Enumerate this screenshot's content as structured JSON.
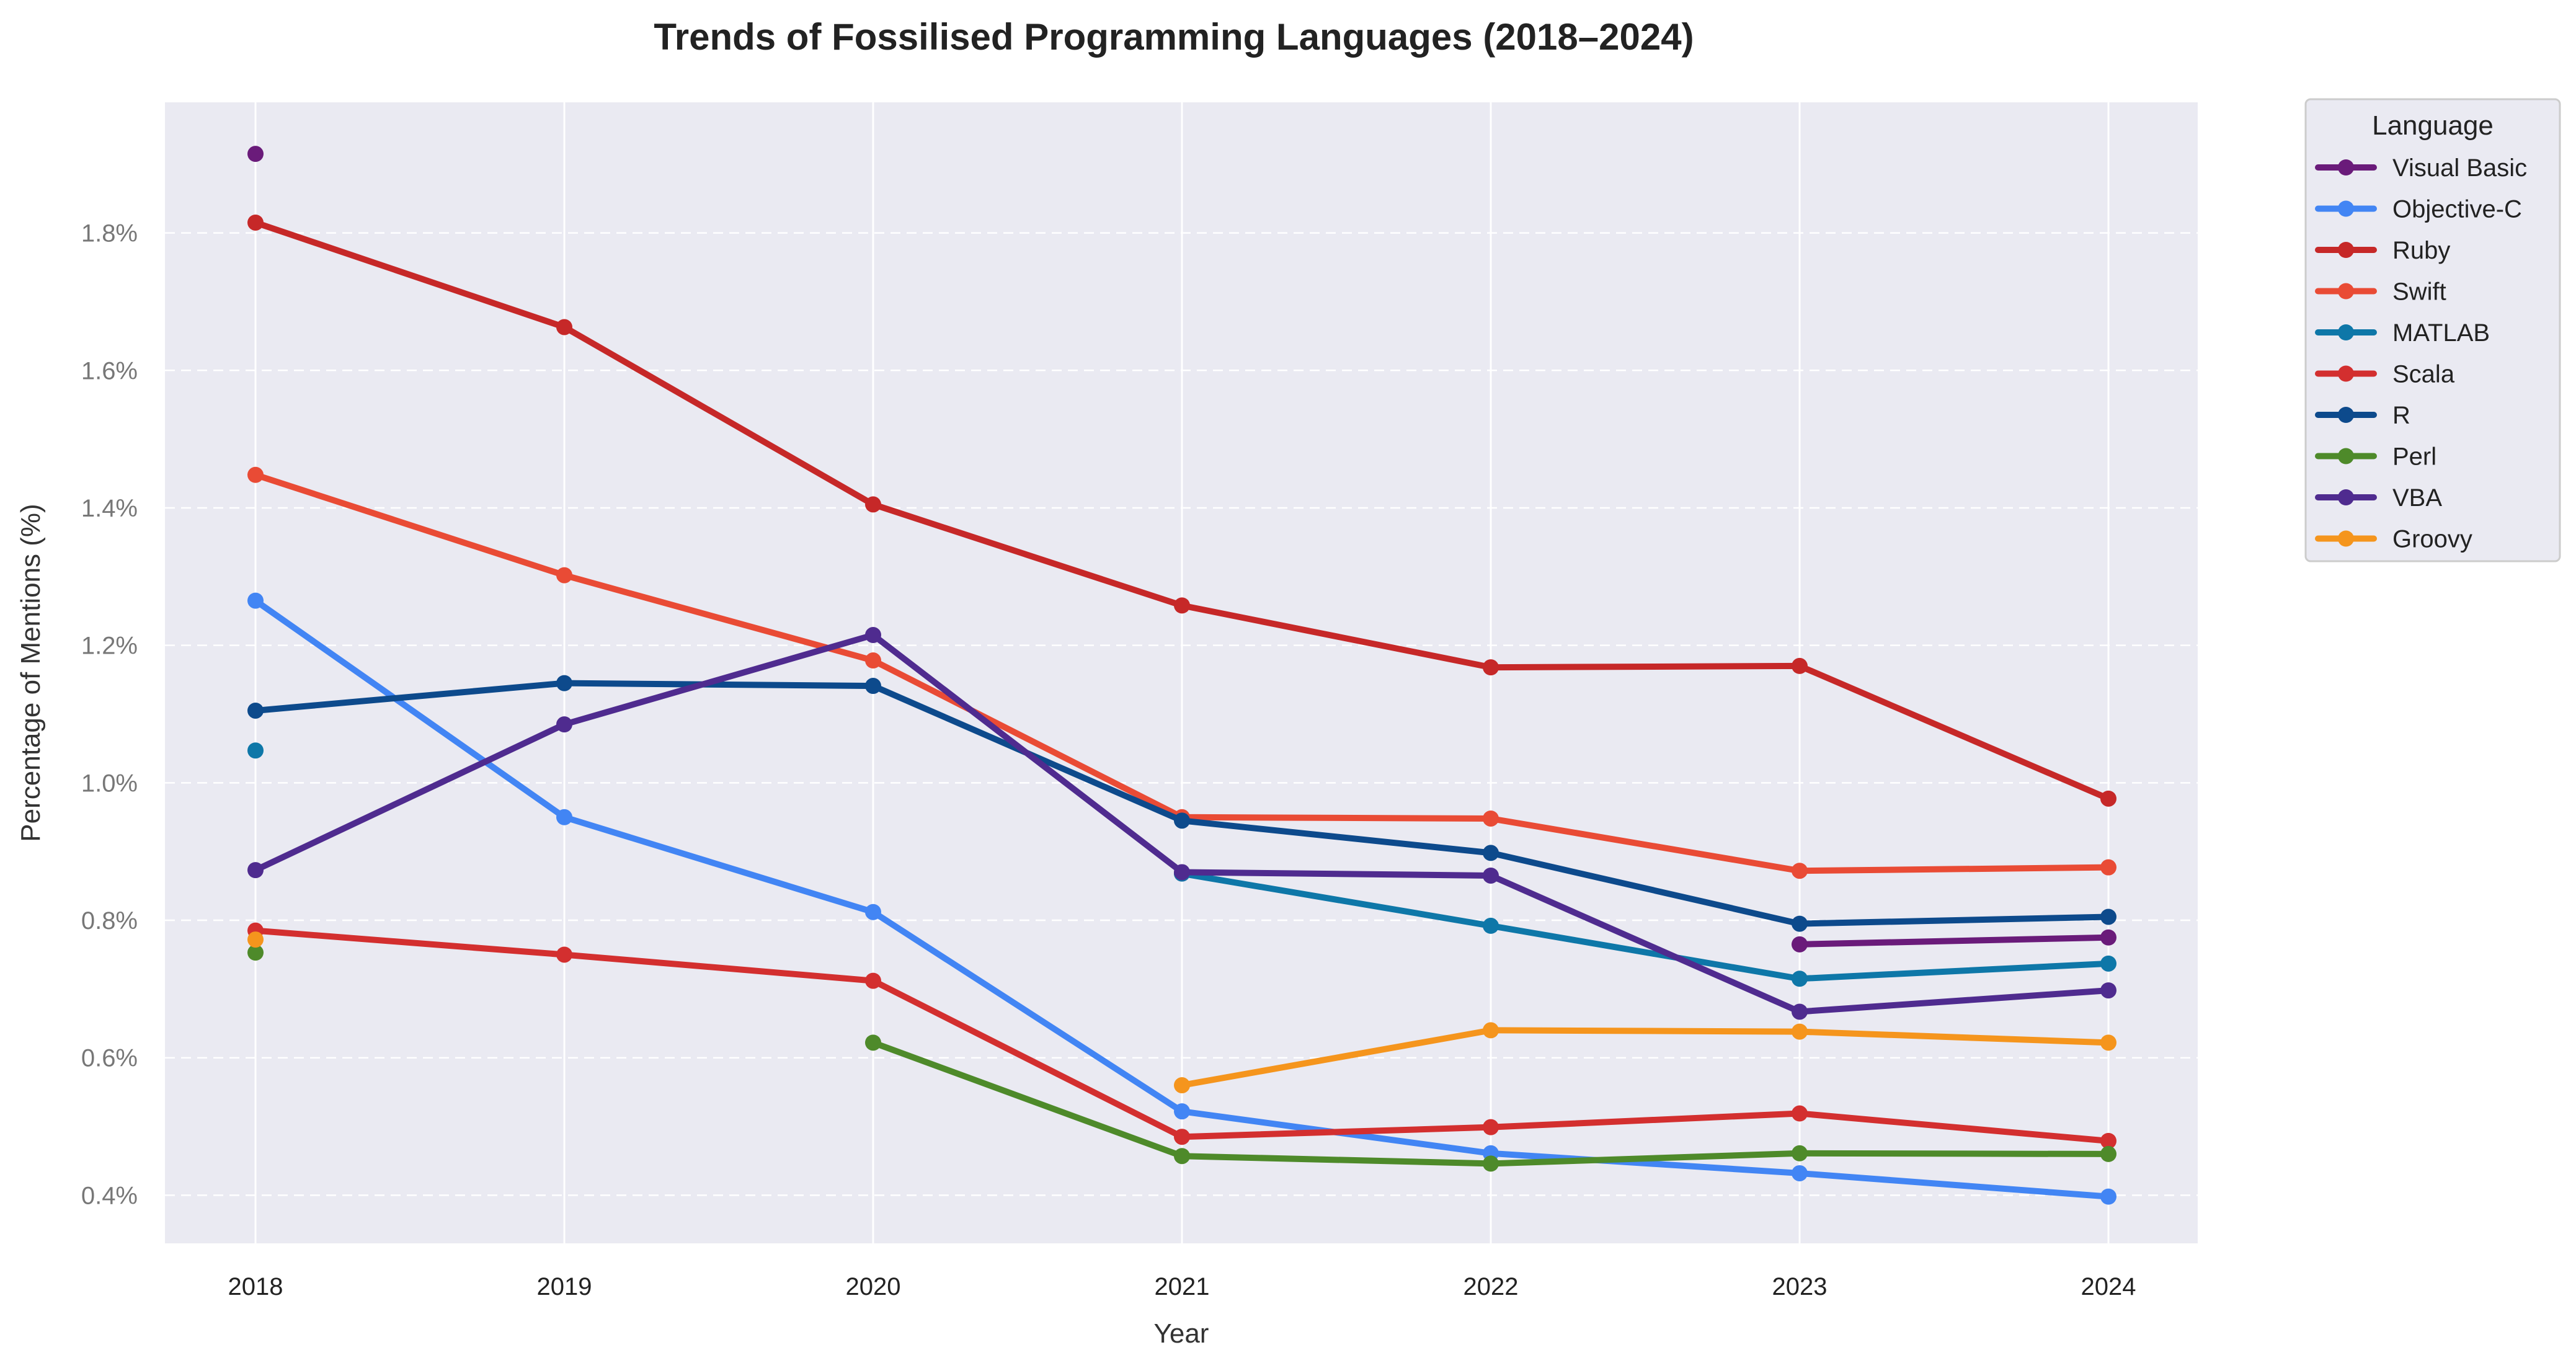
{
  "chart_data": {
    "type": "line",
    "title": "Trends of Fossilised Programming Languages (2018–2024)",
    "xlabel": "Year",
    "ylabel": "Percentage of Mentions (%)",
    "x": [
      2018,
      2019,
      2020,
      2021,
      2022,
      2023,
      2024
    ],
    "x_tick_labels": [
      "2018",
      "2019",
      "2020",
      "2021",
      "2022",
      "2023",
      "2024"
    ],
    "ylim": [
      0.33,
      1.99
    ],
    "y_ticks": [
      0.4,
      0.6,
      0.8,
      1.0,
      1.2,
      1.4,
      1.6,
      1.8
    ],
    "y_tick_labels": [
      "0.4%",
      "0.6%",
      "0.8%",
      "1.0%",
      "1.2%",
      "1.4%",
      "1.6%",
      "1.8%"
    ],
    "grid": true,
    "background": "#eaeaf2",
    "legend": {
      "title": "Language",
      "placement": "outside-top-right"
    },
    "series": [
      {
        "name": "Visual Basic",
        "color": "#6a1b7a",
        "values": [
          1.915,
          null,
          null,
          0.868,
          null,
          0.765,
          0.775
        ]
      },
      {
        "name": "Objective-C",
        "color": "#4285f4",
        "values": [
          1.265,
          0.95,
          0.812,
          0.522,
          0.461,
          0.432,
          0.398
        ]
      },
      {
        "name": "Ruby",
        "color": "#c62828",
        "values": [
          1.815,
          1.663,
          1.405,
          1.258,
          1.168,
          1.17,
          0.977
        ]
      },
      {
        "name": "Swift",
        "color": "#e94b35",
        "values": [
          1.448,
          1.302,
          1.178,
          0.95,
          0.948,
          0.872,
          0.877
        ]
      },
      {
        "name": "MATLAB",
        "color": "#0e77a8",
        "values": [
          1.047,
          null,
          null,
          0.868,
          0.792,
          0.715,
          0.737
        ]
      },
      {
        "name": "Scala",
        "color": "#d32f2f",
        "values": [
          0.785,
          0.75,
          0.712,
          0.485,
          0.499,
          0.519,
          0.479
        ]
      },
      {
        "name": "R",
        "color": "#0d4a8c",
        "values": [
          1.105,
          1.145,
          1.141,
          0.945,
          0.898,
          0.795,
          0.805
        ]
      },
      {
        "name": "Perl",
        "color": "#4e8a2a",
        "values": [
          0.753,
          null,
          0.622,
          0.457,
          0.446,
          0.461,
          0.46
        ]
      },
      {
        "name": "VBA",
        "color": "#4f2b8f",
        "values": [
          0.873,
          1.085,
          1.215,
          0.87,
          0.865,
          0.667,
          0.698
        ]
      },
      {
        "name": "Groovy",
        "color": "#f5951d",
        "values": [
          0.772,
          null,
          null,
          0.56,
          0.64,
          0.638,
          0.622
        ]
      }
    ]
  }
}
